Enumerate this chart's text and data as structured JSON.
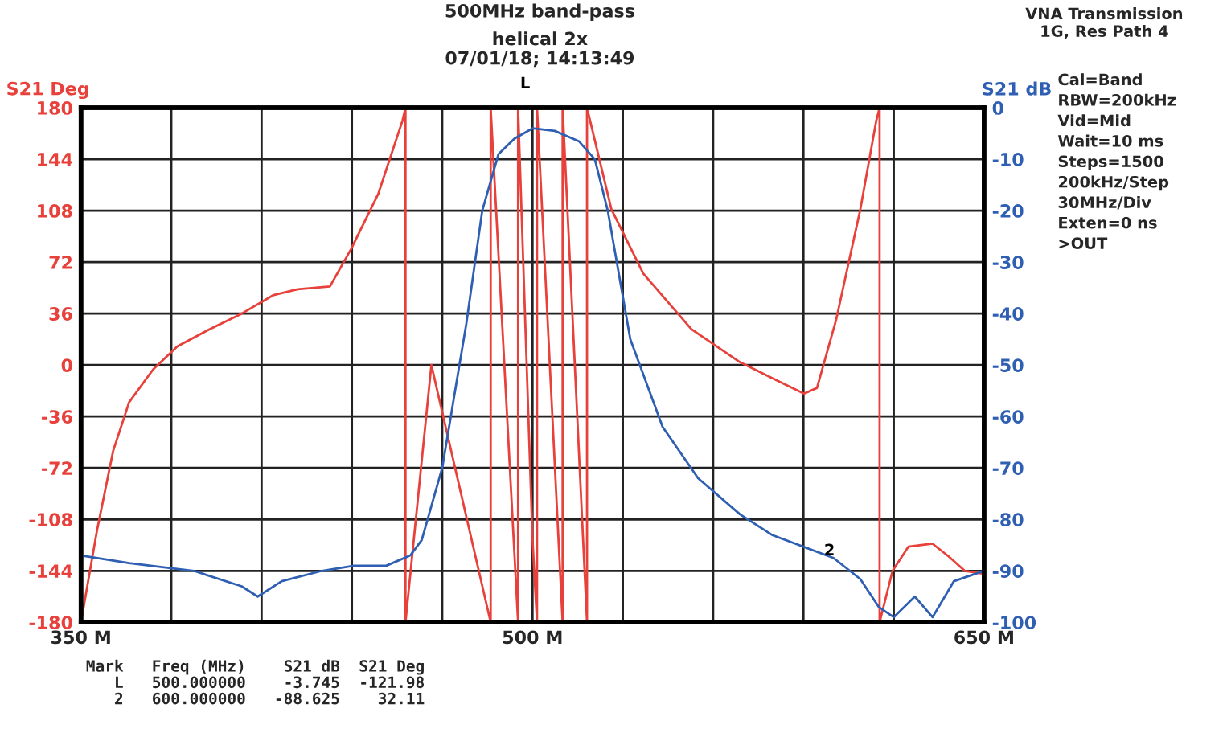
{
  "chart_data": {
    "type": "line",
    "title": "500MHz band-pass",
    "subtitle": "helical 2x\n07/01/18; 14:13:49",
    "ylabel": "S21 Deg",
    "y2label": "S21 dB",
    "xlim": [
      350,
      650
    ],
    "xticks": [
      {
        "value": 350,
        "label": "350 M"
      },
      {
        "value": 380,
        "label": null
      },
      {
        "value": 410,
        "label": null
      },
      {
        "value": 440,
        "label": null
      },
      {
        "value": 470,
        "label": null
      },
      {
        "value": 500,
        "label": "500 M"
      },
      {
        "value": 530,
        "label": null
      },
      {
        "value": 560,
        "label": null
      },
      {
        "value": 590,
        "label": null
      },
      {
        "value": 620,
        "label": null
      },
      {
        "value": 650,
        "label": "650 M"
      }
    ],
    "ylim": [
      -180,
      180
    ],
    "yticks": [
      -180,
      -144,
      -108,
      -72,
      -36,
      0,
      36,
      72,
      108,
      144,
      180
    ],
    "y2lim": [
      -100,
      0
    ],
    "y2ticks": [
      -100,
      -90,
      -80,
      -70,
      -60,
      -50,
      -40,
      -30,
      -20,
      -10,
      0
    ],
    "grid": true,
    "legend": false,
    "series": [
      {
        "color": "#e8403a",
        "axis": "y",
        "x": [
          350,
          355.3,
          360.7,
          366,
          374,
          382,
          392.7,
          403.4,
          414,
          422,
          432.7,
          439.7,
          448.8,
          456.8,
          457.8,
          457.8,
          466.4,
          486.1,
          486.1,
          495.2,
          495.2,
          500,
          501.5,
          501.5,
          510,
          510,
          518.1,
          518.1,
          526.2,
          536.8,
          552.8,
          568.9,
          579.5,
          590.2,
          594.5,
          600.9,
          608.9,
          614.2,
          615.3,
          615.3,
          619.6,
          624.9,
          632.9,
          638.3,
          643.6,
          650
        ],
        "values": [
          -180,
          -116,
          -60,
          -26,
          -3,
          13,
          25,
          36,
          49,
          53,
          55,
          81,
          120,
          171,
          180,
          -180,
          0,
          -180,
          180,
          -180,
          180,
          -122,
          -180,
          180,
          -180,
          180,
          -180,
          180,
          109,
          64,
          25,
          2,
          -9,
          -20,
          -16,
          32,
          109,
          171,
          180,
          -180,
          -144,
          -127,
          -125,
          -134,
          -144,
          -146
        ]
      },
      {
        "color": "#2f5fb3",
        "axis": "y2",
        "x": [
          350,
          366,
          387.5,
          403.4,
          408.7,
          416.7,
          430,
          440.7,
          451.4,
          459.4,
          463.2,
          470,
          478,
          483.3,
          488.7,
          494,
          500,
          507.4,
          515.4,
          520.7,
          525,
          532.5,
          543.2,
          555,
          568.9,
          579.5,
          600,
          608.9,
          615,
          620,
          627,
          632.9,
          640,
          645,
          650
        ],
        "values": [
          -87,
          -88.5,
          -90,
          -93,
          -95,
          -92,
          -90,
          -89,
          -89,
          -87,
          -84,
          -70,
          -42,
          -20,
          -9,
          -6,
          -4,
          -4.5,
          -6.5,
          -10,
          -20,
          -45,
          -62,
          -72,
          -79,
          -83,
          -87.5,
          -91.6,
          -97,
          -99,
          -95,
          -99,
          -92,
          -91,
          -90
        ]
      }
    ],
    "annotations": [
      "L",
      "2",
      "VNA Transmission\n1G, Res Path 4",
      "Cal=Band\nRBW=200kHz\nVid=Mid\nWait=10 ms\nSteps=1500\n200kHz/Step\n30MHz/Div\nExten=0 ns\n>OUT",
      "Mark   Freq (MHz)    S21 dB  S21 Deg\n   L   500.000000    -3.745  -121.98\n   2   600.000000   -88.625    32.11"
    ]
  }
}
